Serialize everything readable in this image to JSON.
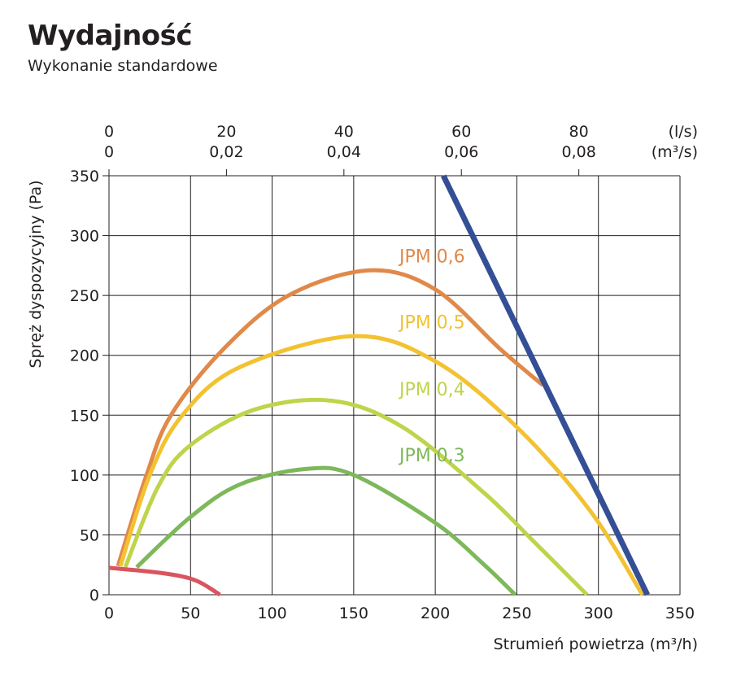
{
  "header": {
    "title": "Wydajność",
    "subtitle": "Wykonanie standardowe"
  },
  "chart_data": {
    "type": "line",
    "xlabel": "Strumień powietrza (m³/h)",
    "ylabel": "Spręż dyspozycyjny (Pa)",
    "xlim": [
      0,
      350
    ],
    "ylim": [
      0,
      350
    ],
    "xticks": [
      0,
      50,
      100,
      150,
      200,
      250,
      300,
      350
    ],
    "yticks": [
      0,
      50,
      100,
      150,
      200,
      250,
      300,
      350
    ],
    "grid": true,
    "top_axis": {
      "ls_ticks": [
        "0",
        "20",
        "40",
        "60",
        "80"
      ],
      "ls_values": [
        0,
        20,
        40,
        60,
        80
      ],
      "m3s_ticks": [
        "0",
        "0,02",
        "0,04",
        "0,06",
        "0,08"
      ],
      "ls_unit": "(l/s)",
      "m3s_unit": "(m³/s)"
    },
    "series": [
      {
        "name": "JPM 0,6",
        "color": "#e0894a",
        "points": [
          [
            5.5,
            24
          ],
          [
            23,
            100
          ],
          [
            38,
            150
          ],
          [
            70,
            205
          ],
          [
            110,
            250
          ],
          [
            160,
            271
          ],
          [
            200,
            255
          ],
          [
            240,
            205
          ],
          [
            266,
            175
          ]
        ]
      },
      {
        "name": "JPM 0,5",
        "color": "#f2c232",
        "points": [
          [
            7,
            24
          ],
          [
            25,
            100
          ],
          [
            45,
            150
          ],
          [
            80,
            190
          ],
          [
            150,
            216
          ],
          [
            200,
            195
          ],
          [
            250,
            140
          ],
          [
            295,
            70
          ],
          [
            327,
            0
          ]
        ]
      },
      {
        "name": "JPM 0,4",
        "color": "#bfd44a",
        "points": [
          [
            10,
            23
          ],
          [
            30,
            90
          ],
          [
            50,
            125
          ],
          [
            90,
            155
          ],
          [
            137,
            162
          ],
          [
            180,
            140
          ],
          [
            230,
            85
          ],
          [
            260,
            45
          ],
          [
            293,
            0
          ]
        ]
      },
      {
        "name": "JPM 0,3",
        "color": "#7db85a",
        "points": [
          [
            17,
            23
          ],
          [
            50,
            65
          ],
          [
            80,
            92
          ],
          [
            120,
            105
          ],
          [
            150,
            100
          ],
          [
            200,
            60
          ],
          [
            230,
            25
          ],
          [
            249,
            0
          ]
        ]
      },
      {
        "color": "#d9555f",
        "points": [
          [
            0,
            22.5
          ],
          [
            33,
            18
          ],
          [
            53,
            12
          ],
          [
            68,
            0
          ]
        ]
      },
      {
        "color": "#344f95",
        "points": [
          [
            205,
            350
          ],
          [
            330,
            0
          ]
        ]
      }
    ],
    "annotations": [
      {
        "text": "JPM 0,6",
        "x": 168,
        "y": 283,
        "color": "#e0894a"
      },
      {
        "text": "JPM 0,5",
        "x": 168,
        "y": 228,
        "color": "#f2c232"
      },
      {
        "text": "JPM 0,4",
        "x": 168,
        "y": 172,
        "color": "#bfd44a"
      },
      {
        "text": "JPM 0,3",
        "x": 168,
        "y": 117,
        "color": "#7db85a"
      }
    ]
  }
}
